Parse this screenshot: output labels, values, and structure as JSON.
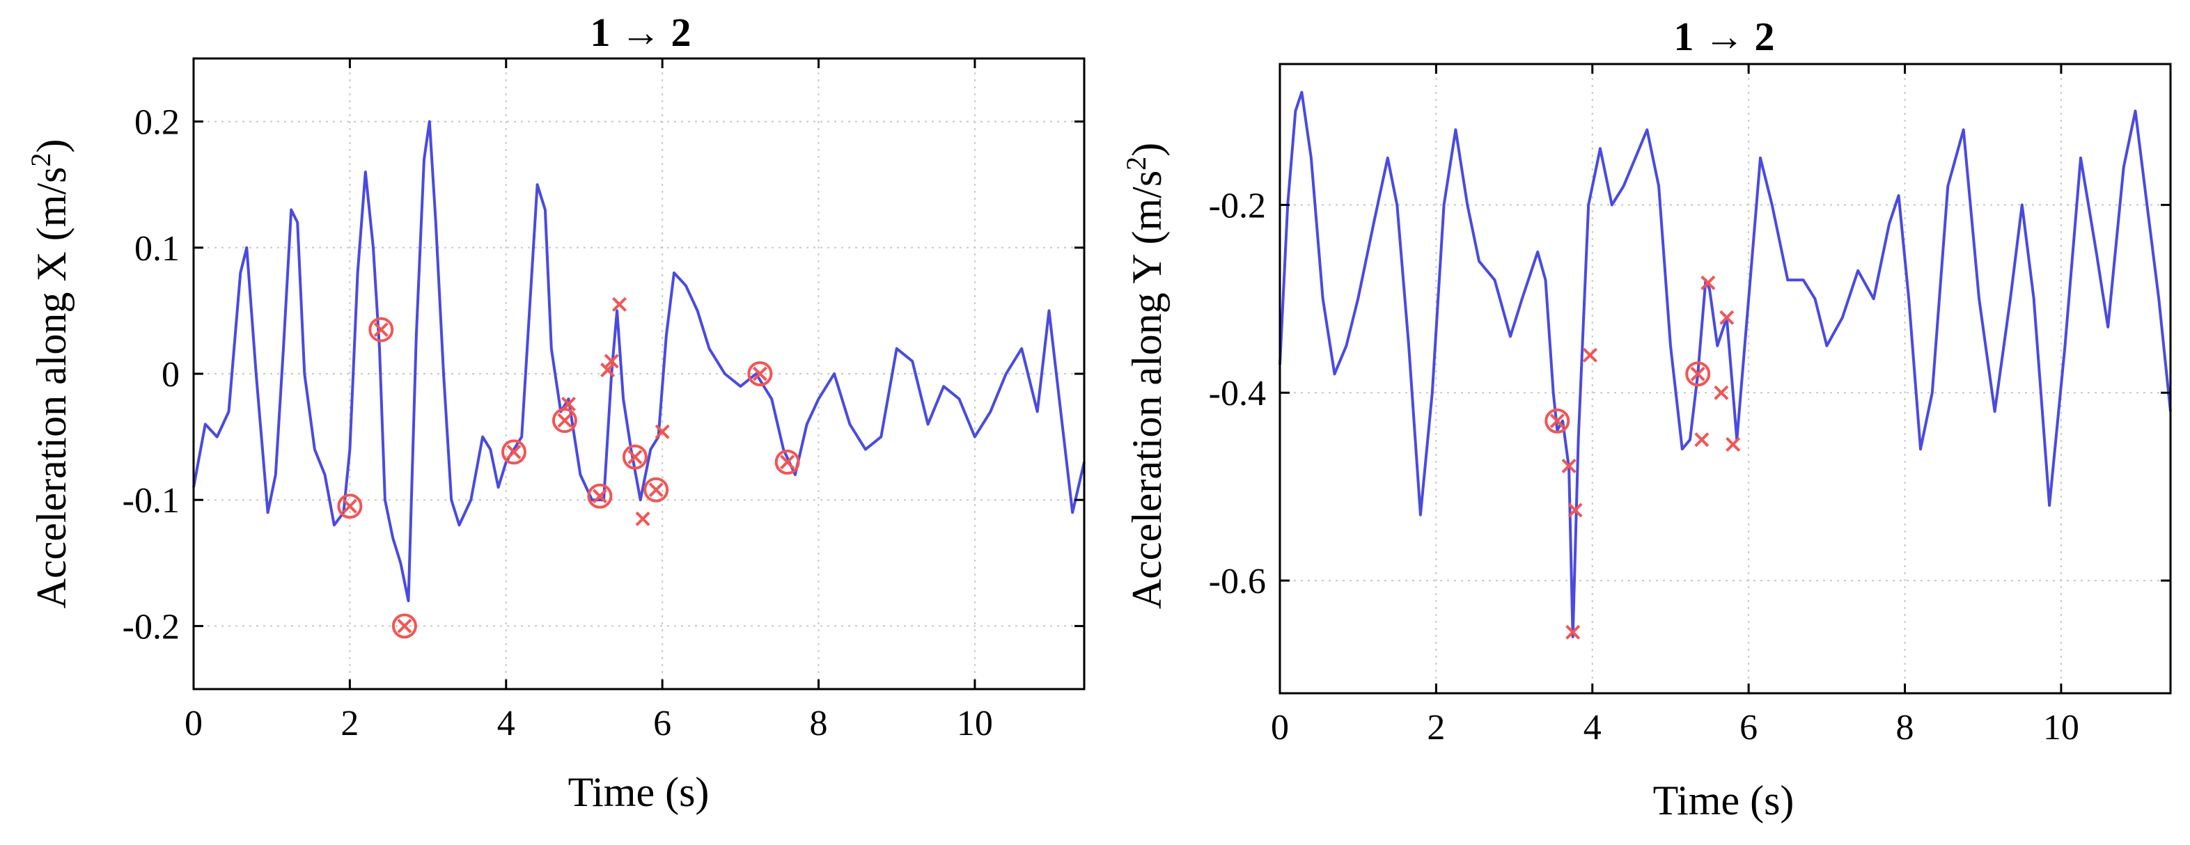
{
  "chart_data": [
    {
      "type": "line",
      "title": "1 → 2",
      "xlabel": "Time (s)",
      "ylabel": "Acceleration along X (m/s",
      "ylabel_sup": "2",
      "ylabel_end": ")",
      "xlim": [
        0,
        11.4
      ],
      "ylim": [
        -0.25,
        0.25
      ],
      "xticks": [
        0,
        2,
        4,
        6,
        8,
        10
      ],
      "yticks": [
        -0.2,
        -0.1,
        0,
        0.1,
        0.2
      ],
      "ytick_labels": [
        "-0.2",
        "-0.1",
        "0",
        "0.1",
        "0.2"
      ],
      "grid": true,
      "colors": {
        "line": "#4a4ae0",
        "marker": "#f25555"
      },
      "series": [
        {
          "marker": "line",
          "x": [
            0,
            0.15,
            0.3,
            0.45,
            0.6,
            0.68,
            0.8,
            0.95,
            1.05,
            1.15,
            1.25,
            1.33,
            1.42,
            1.55,
            1.68,
            1.8,
            1.92,
            2.0,
            2.1,
            2.2,
            2.3,
            2.38,
            2.45,
            2.55,
            2.65,
            2.75,
            2.85,
            2.95,
            3.02,
            3.1,
            3.2,
            3.3,
            3.4,
            3.55,
            3.7,
            3.8,
            3.9,
            4.0,
            4.1,
            4.2,
            4.3,
            4.4,
            4.5,
            4.58,
            4.7,
            4.8,
            4.95,
            5.1,
            5.25,
            5.35,
            5.42,
            5.5,
            5.6,
            5.72,
            5.85,
            5.95,
            6.05,
            6.15,
            6.3,
            6.45,
            6.6,
            6.8,
            7.0,
            7.2,
            7.4,
            7.55,
            7.7,
            7.85,
            8.0,
            8.2,
            8.4,
            8.6,
            8.8,
            9.0,
            9.2,
            9.4,
            9.6,
            9.8,
            10.0,
            10.2,
            10.4,
            10.6,
            10.8,
            10.95,
            11.1,
            11.25,
            11.4
          ],
          "y": [
            -0.09,
            -0.04,
            -0.05,
            -0.03,
            0.08,
            0.1,
            0.0,
            -0.11,
            -0.08,
            0.02,
            0.13,
            0.12,
            0.0,
            -0.06,
            -0.08,
            -0.12,
            -0.11,
            -0.06,
            0.08,
            0.16,
            0.1,
            0.02,
            -0.1,
            -0.13,
            -0.15,
            -0.18,
            0.03,
            0.17,
            0.2,
            0.12,
            0.0,
            -0.1,
            -0.12,
            -0.1,
            -0.05,
            -0.06,
            -0.09,
            -0.07,
            -0.06,
            -0.05,
            0.05,
            0.15,
            0.13,
            0.02,
            -0.03,
            -0.02,
            -0.08,
            -0.1,
            -0.1,
            0.0,
            0.05,
            -0.02,
            -0.06,
            -0.1,
            -0.06,
            -0.05,
            0.03,
            0.08,
            0.07,
            0.05,
            0.02,
            0.0,
            -0.01,
            0.0,
            -0.02,
            -0.06,
            -0.08,
            -0.04,
            -0.02,
            0.0,
            -0.04,
            -0.06,
            -0.05,
            0.02,
            0.01,
            -0.04,
            -0.01,
            -0.02,
            -0.05,
            -0.03,
            0.0,
            0.02,
            -0.03,
            0.05,
            -0.03,
            -0.11,
            -0.07
          ]
        },
        {
          "marker": "circle-x",
          "x": [
            2.0,
            2.4,
            2.7,
            4.1,
            4.75,
            5.2,
            5.65,
            5.92,
            7.25,
            7.6
          ],
          "y": [
            -0.105,
            0.035,
            -0.2,
            -0.062,
            -0.037,
            -0.097,
            -0.066,
            -0.092,
            0.0,
            -0.07
          ]
        },
        {
          "marker": "x",
          "x": [
            4.8,
            5.3,
            5.35,
            5.45,
            5.75,
            6.0
          ],
          "y": [
            -0.024,
            0.003,
            0.01,
            0.055,
            -0.115,
            -0.046
          ]
        }
      ]
    },
    {
      "type": "line",
      "title": "1 → 2",
      "xlabel": "Time (s)",
      "ylabel": "Acceleration along Y (m/s",
      "ylabel_sup": "2",
      "ylabel_end": ")",
      "xlim": [
        0,
        11.4
      ],
      "ylim": [
        -0.72,
        -0.05
      ],
      "xticks": [
        0,
        2,
        4,
        6,
        8,
        10
      ],
      "yticks": [
        -0.6,
        -0.4,
        -0.2
      ],
      "ytick_labels": [
        "-0.6",
        "-0.4",
        "-0.2"
      ],
      "grid": true,
      "colors": {
        "line": "#4a4ae0",
        "marker": "#f25555"
      },
      "series": [
        {
          "marker": "line",
          "x": [
            0,
            0.1,
            0.2,
            0.28,
            0.4,
            0.55,
            0.7,
            0.85,
            1.0,
            1.2,
            1.38,
            1.5,
            1.65,
            1.8,
            1.95,
            2.1,
            2.25,
            2.4,
            2.55,
            2.75,
            2.95,
            3.1,
            3.3,
            3.4,
            3.5,
            3.55,
            3.62,
            3.7,
            3.75,
            3.82,
            3.95,
            4.1,
            4.25,
            4.4,
            4.55,
            4.7,
            4.85,
            5.0,
            5.15,
            5.25,
            5.35,
            5.45,
            5.5,
            5.6,
            5.72,
            5.85,
            6.0,
            6.15,
            6.3,
            6.5,
            6.7,
            6.85,
            7.0,
            7.2,
            7.4,
            7.6,
            7.8,
            7.92,
            8.05,
            8.2,
            8.35,
            8.55,
            8.75,
            8.95,
            9.15,
            9.35,
            9.5,
            9.65,
            9.85,
            10.05,
            10.25,
            10.45,
            10.6,
            10.8,
            10.95,
            11.1,
            11.25,
            11.4
          ],
          "y": [
            -0.37,
            -0.2,
            -0.1,
            -0.08,
            -0.15,
            -0.3,
            -0.38,
            -0.35,
            -0.3,
            -0.22,
            -0.15,
            -0.2,
            -0.35,
            -0.53,
            -0.4,
            -0.2,
            -0.12,
            -0.2,
            -0.26,
            -0.28,
            -0.34,
            -0.3,
            -0.25,
            -0.28,
            -0.4,
            -0.44,
            -0.43,
            -0.48,
            -0.66,
            -0.45,
            -0.2,
            -0.14,
            -0.2,
            -0.18,
            -0.15,
            -0.12,
            -0.18,
            -0.35,
            -0.46,
            -0.45,
            -0.38,
            -0.28,
            -0.29,
            -0.35,
            -0.32,
            -0.45,
            -0.3,
            -0.15,
            -0.2,
            -0.28,
            -0.28,
            -0.3,
            -0.35,
            -0.32,
            -0.27,
            -0.3,
            -0.22,
            -0.19,
            -0.3,
            -0.46,
            -0.4,
            -0.18,
            -0.12,
            -0.3,
            -0.42,
            -0.3,
            -0.2,
            -0.3,
            -0.52,
            -0.35,
            -0.15,
            -0.25,
            -0.33,
            -0.16,
            -0.1,
            -0.2,
            -0.3,
            -0.42
          ]
        },
        {
          "marker": "circle-x",
          "x": [
            3.55,
            5.35
          ],
          "y": [
            -0.43,
            -0.38
          ]
        },
        {
          "marker": "x",
          "x": [
            3.7,
            3.78,
            3.75,
            3.97,
            5.4,
            5.48,
            5.65,
            5.72,
            5.8
          ],
          "y": [
            -0.478,
            -0.525,
            -0.655,
            -0.36,
            -0.45,
            -0.283,
            -0.4,
            -0.32,
            -0.455
          ]
        }
      ]
    }
  ]
}
